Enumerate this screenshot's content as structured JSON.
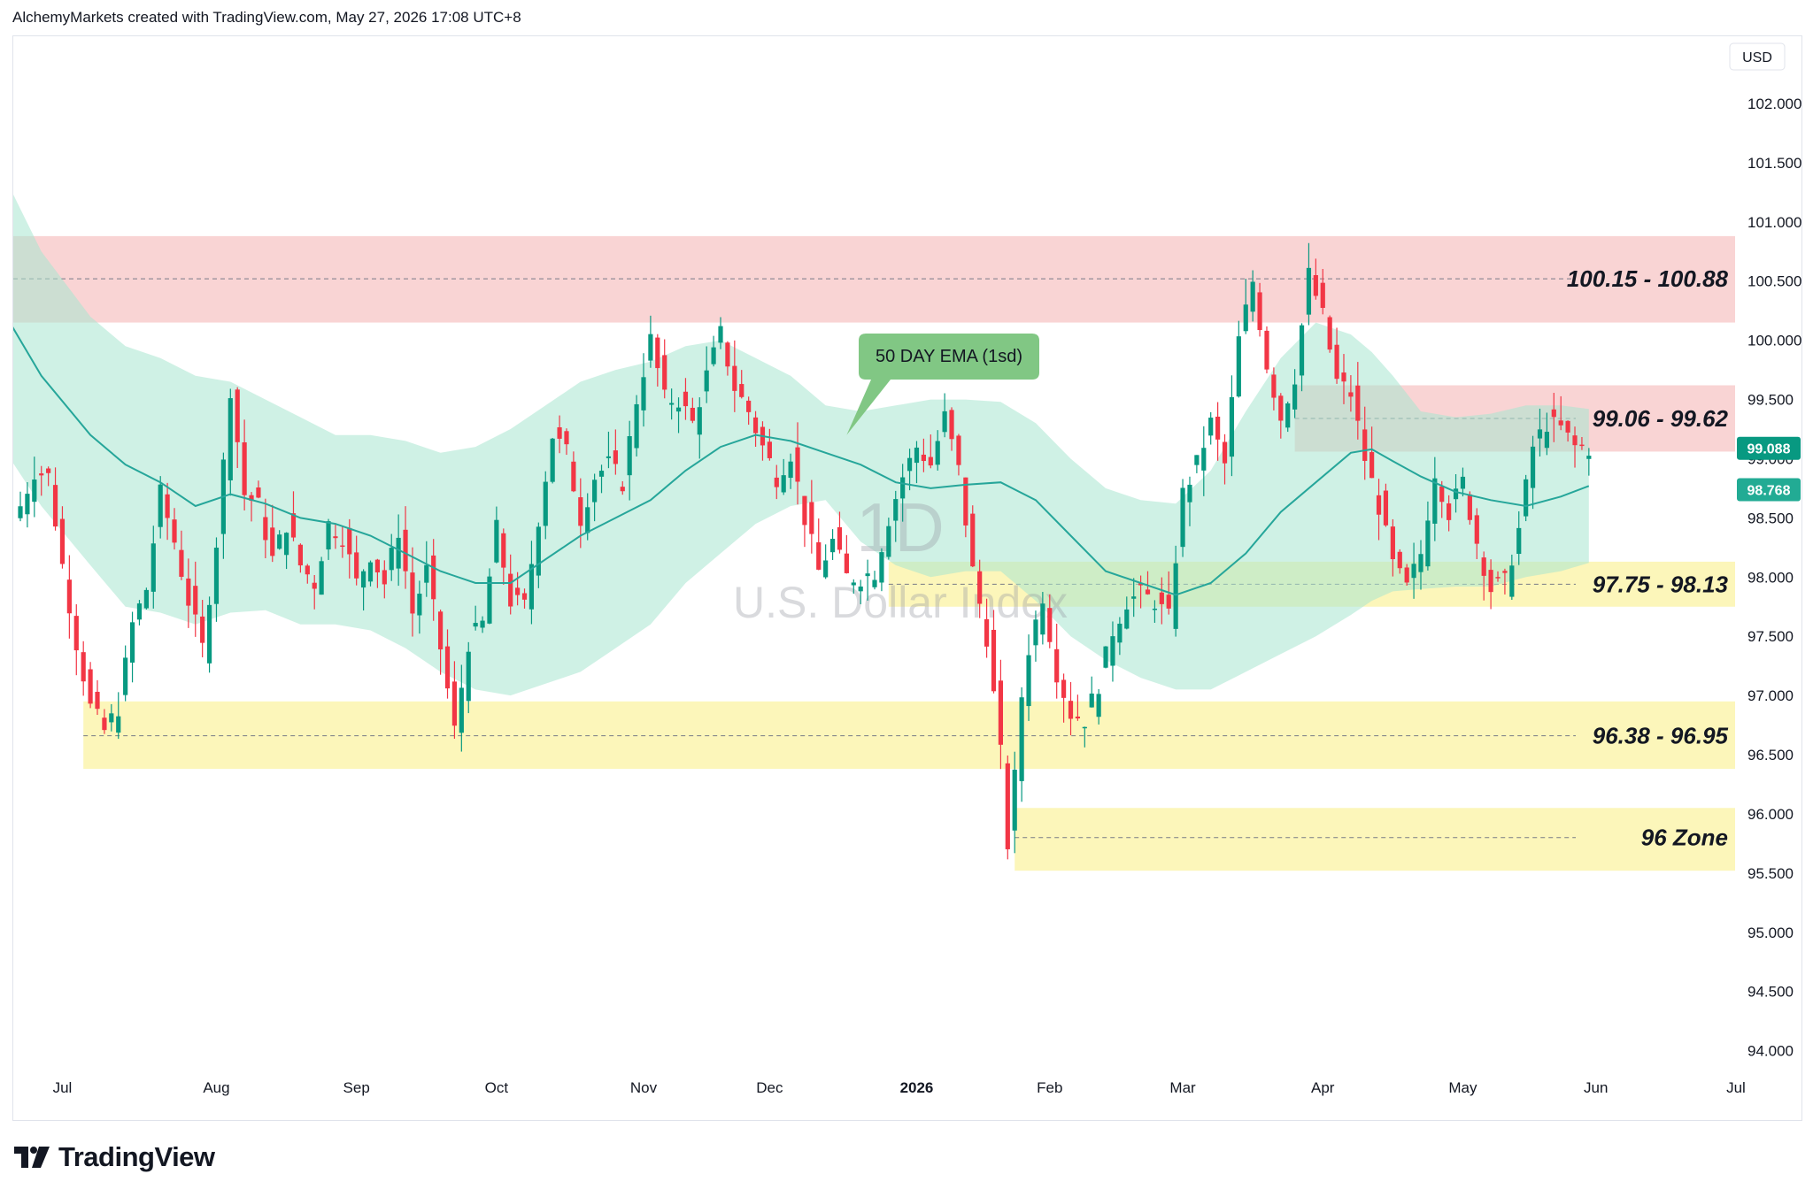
{
  "header": {
    "attribution": "AlchemyMarkets created with TradingView.com, May 27, 2026 17:08 UTC+8"
  },
  "footer": {
    "brand": "TradingView"
  },
  "chart_data": {
    "type": "candlestick",
    "symbol_watermark": "U.S. Dollar Index",
    "interval_watermark": "1D",
    "currency": "USD",
    "ylim": [
      93.8,
      102.8
    ],
    "y_ticks": [
      "94.000",
      "94.500",
      "95.000",
      "95.500",
      "96.000",
      "96.500",
      "97.000",
      "97.500",
      "98.000",
      "98.500",
      "99.000",
      "99.500",
      "100.000",
      "100.500",
      "101.000",
      "101.500",
      "102.000"
    ],
    "x_ticks": [
      {
        "label": "Jul",
        "bar": 6
      },
      {
        "label": "Aug",
        "bar": 28
      },
      {
        "label": "Sep",
        "bar": 48
      },
      {
        "label": "Oct",
        "bar": 68
      },
      {
        "label": "Nov",
        "bar": 89
      },
      {
        "label": "Dec",
        "bar": 107
      },
      {
        "label": "2026",
        "bar": 128,
        "bold": true
      },
      {
        "label": "Feb",
        "bar": 147
      },
      {
        "label": "Mar",
        "bar": 166
      },
      {
        "label": "Apr",
        "bar": 186
      },
      {
        "label": "May",
        "bar": 206
      },
      {
        "label": "Jun",
        "bar": 225
      },
      {
        "label": "Jul",
        "bar": 245
      }
    ],
    "price_labels": [
      {
        "value": "99.088",
        "price": 99.088,
        "color": "#089981"
      },
      {
        "value": "98.768",
        "price": 98.768,
        "color": "#22ab94"
      }
    ],
    "zones": [
      {
        "label": "100.15 - 100.88",
        "low": 100.15,
        "high": 100.88,
        "mid": 100.52,
        "x_start_bar": -2,
        "color": "#f7c5c5"
      },
      {
        "label": "99.06 - 99.62",
        "low": 99.06,
        "high": 99.62,
        "mid": 99.34,
        "x_start_bar": 182,
        "color": "#f7c5c5"
      },
      {
        "label": "97.75 - 98.13",
        "low": 97.75,
        "high": 98.13,
        "mid": 97.94,
        "x_start_bar": 124,
        "color": "#fbf3a3"
      },
      {
        "label": "96.38 - 96.95",
        "low": 96.38,
        "high": 96.95,
        "mid": 96.66,
        "x_start_bar": 9,
        "color": "#fbf3a3"
      },
      {
        "label": "96 Zone",
        "low": 95.52,
        "high": 96.05,
        "mid": 95.8,
        "x_start_bar": 142,
        "color": "#fbf3a3"
      }
    ],
    "annotation": {
      "text": "50 DAY EMA (1sd)",
      "bar": 118,
      "price": 99.2
    },
    "ema": {
      "name": "50 DAY EMA (1sd)",
      "points": [
        [
          -2,
          100.2
        ],
        [
          3,
          99.7
        ],
        [
          10,
          99.2
        ],
        [
          15,
          98.95
        ],
        [
          20,
          98.8
        ],
        [
          25,
          98.6
        ],
        [
          30,
          98.7
        ],
        [
          35,
          98.62
        ],
        [
          40,
          98.5
        ],
        [
          45,
          98.45
        ],
        [
          50,
          98.35
        ],
        [
          55,
          98.2
        ],
        [
          60,
          98.05
        ],
        [
          65,
          97.95
        ],
        [
          70,
          97.95
        ],
        [
          75,
          98.15
        ],
        [
          80,
          98.35
        ],
        [
          85,
          98.5
        ],
        [
          90,
          98.65
        ],
        [
          95,
          98.9
        ],
        [
          100,
          99.1
        ],
        [
          105,
          99.2
        ],
        [
          110,
          99.15
        ],
        [
          115,
          99.05
        ],
        [
          120,
          98.95
        ],
        [
          125,
          98.8
        ],
        [
          130,
          98.75
        ],
        [
          135,
          98.78
        ],
        [
          140,
          98.8
        ],
        [
          145,
          98.65
        ],
        [
          150,
          98.35
        ],
        [
          155,
          98.05
        ],
        [
          160,
          97.95
        ],
        [
          165,
          97.85
        ],
        [
          170,
          97.95
        ],
        [
          175,
          98.2
        ],
        [
          180,
          98.55
        ],
        [
          185,
          98.8
        ],
        [
          190,
          99.05
        ],
        [
          193,
          99.08
        ],
        [
          196,
          98.98
        ],
        [
          200,
          98.85
        ],
        [
          205,
          98.72
        ],
        [
          210,
          98.65
        ],
        [
          215,
          98.6
        ],
        [
          220,
          98.68
        ],
        [
          224,
          98.77
        ]
      ],
      "band_upper": [
        [
          -2,
          101.35
        ],
        [
          3,
          100.75
        ],
        [
          10,
          100.2
        ],
        [
          15,
          99.95
        ],
        [
          20,
          99.85
        ],
        [
          25,
          99.7
        ],
        [
          30,
          99.65
        ],
        [
          35,
          99.5
        ],
        [
          40,
          99.35
        ],
        [
          45,
          99.2
        ],
        [
          50,
          99.2
        ],
        [
          55,
          99.15
        ],
        [
          60,
          99.05
        ],
        [
          65,
          99.1
        ],
        [
          70,
          99.25
        ],
        [
          75,
          99.45
        ],
        [
          80,
          99.65
        ],
        [
          85,
          99.75
        ],
        [
          90,
          99.82
        ],
        [
          95,
          99.95
        ],
        [
          100,
          100.0
        ],
        [
          105,
          99.85
        ],
        [
          110,
          99.7
        ],
        [
          115,
          99.45
        ],
        [
          120,
          99.4
        ],
        [
          125,
          99.45
        ],
        [
          130,
          99.5
        ],
        [
          135,
          99.5
        ],
        [
          140,
          99.48
        ],
        [
          145,
          99.3
        ],
        [
          150,
          99.0
        ],
        [
          155,
          98.75
        ],
        [
          160,
          98.65
        ],
        [
          165,
          98.62
        ],
        [
          170,
          98.9
        ],
        [
          175,
          99.4
        ],
        [
          180,
          99.85
        ],
        [
          185,
          100.15
        ],
        [
          190,
          100.05
        ],
        [
          193,
          99.9
        ],
        [
          196,
          99.7
        ],
        [
          200,
          99.4
        ],
        [
          205,
          99.35
        ],
        [
          210,
          99.38
        ],
        [
          215,
          99.45
        ],
        [
          220,
          99.45
        ],
        [
          224,
          99.42
        ]
      ],
      "band_lower": [
        [
          -2,
          99.05
        ],
        [
          3,
          98.6
        ],
        [
          10,
          98.1
        ],
        [
          15,
          97.75
        ],
        [
          20,
          97.7
        ],
        [
          25,
          97.6
        ],
        [
          30,
          97.7
        ],
        [
          35,
          97.72
        ],
        [
          40,
          97.6
        ],
        [
          45,
          97.6
        ],
        [
          50,
          97.55
        ],
        [
          55,
          97.4
        ],
        [
          60,
          97.2
        ],
        [
          65,
          97.05
        ],
        [
          70,
          97.0
        ],
        [
          75,
          97.1
        ],
        [
          80,
          97.2
        ],
        [
          85,
          97.4
        ],
        [
          90,
          97.6
        ],
        [
          95,
          97.95
        ],
        [
          100,
          98.2
        ],
        [
          105,
          98.45
        ],
        [
          110,
          98.6
        ],
        [
          115,
          98.65
        ],
        [
          120,
          98.3
        ],
        [
          125,
          98.1
        ],
        [
          130,
          98.0
        ],
        [
          135,
          98.05
        ],
        [
          140,
          98.05
        ],
        [
          145,
          97.8
        ],
        [
          150,
          97.5
        ],
        [
          155,
          97.3
        ],
        [
          160,
          97.15
        ],
        [
          165,
          97.05
        ],
        [
          170,
          97.05
        ],
        [
          175,
          97.2
        ],
        [
          180,
          97.35
        ],
        [
          185,
          97.5
        ],
        [
          190,
          97.68
        ],
        [
          193,
          97.8
        ],
        [
          196,
          97.88
        ],
        [
          200,
          97.9
        ],
        [
          205,
          97.92
        ],
        [
          210,
          97.92
        ],
        [
          215,
          98.0
        ],
        [
          220,
          98.05
        ],
        [
          224,
          98.12
        ]
      ]
    },
    "close_path": [
      [
        0,
        98.6
      ],
      [
        2,
        98.9
      ],
      [
        4,
        98.85
      ],
      [
        6,
        98.1
      ],
      [
        8,
        97.45
      ],
      [
        10,
        96.9
      ],
      [
        12,
        96.7
      ],
      [
        14,
        96.9
      ],
      [
        16,
        97.6
      ],
      [
        18,
        97.9
      ],
      [
        20,
        98.7
      ],
      [
        22,
        98.3
      ],
      [
        24,
        97.8
      ],
      [
        26,
        97.4
      ],
      [
        28,
        98.3
      ],
      [
        30,
        99.6
      ],
      [
        32,
        98.7
      ],
      [
        34,
        98.6
      ],
      [
        36,
        98.15
      ],
      [
        38,
        98.45
      ],
      [
        40,
        98.1
      ],
      [
        42,
        97.95
      ],
      [
        44,
        98.45
      ],
      [
        46,
        98.35
      ],
      [
        48,
        97.95
      ],
      [
        50,
        98.2
      ],
      [
        52,
        97.95
      ],
      [
        54,
        98.4
      ],
      [
        56,
        97.7
      ],
      [
        58,
        98.05
      ],
      [
        60,
        97.4
      ],
      [
        62,
        96.7
      ],
      [
        64,
        97.45
      ],
      [
        66,
        97.6
      ],
      [
        68,
        98.4
      ],
      [
        70,
        97.8
      ],
      [
        72,
        97.75
      ],
      [
        74,
        98.5
      ],
      [
        76,
        99.2
      ],
      [
        78,
        99.05
      ],
      [
        80,
        98.5
      ],
      [
        82,
        98.85
      ],
      [
        84,
        98.95
      ],
      [
        86,
        98.8
      ],
      [
        88,
        99.5
      ],
      [
        90,
        100.0
      ],
      [
        92,
        99.5
      ],
      [
        94,
        99.5
      ],
      [
        96,
        99.3
      ],
      [
        98,
        99.7
      ],
      [
        100,
        100.05
      ],
      [
        102,
        99.6
      ],
      [
        104,
        99.4
      ],
      [
        106,
        99.1
      ],
      [
        108,
        98.85
      ],
      [
        110,
        99.05
      ],
      [
        112,
        98.5
      ],
      [
        114,
        98.05
      ],
      [
        116,
        98.3
      ],
      [
        118,
        98.0
      ],
      [
        120,
        98.0
      ],
      [
        122,
        98.05
      ],
      [
        124,
        98.5
      ],
      [
        126,
        98.85
      ],
      [
        128,
        99.1
      ],
      [
        130,
        98.95
      ],
      [
        132,
        99.35
      ],
      [
        134,
        98.9
      ],
      [
        136,
        98.05
      ],
      [
        138,
        97.5
      ],
      [
        140,
        96.5
      ],
      [
        141,
        95.75
      ],
      [
        142,
        96.3
      ],
      [
        143,
        97.0
      ],
      [
        144,
        97.4
      ],
      [
        146,
        97.85
      ],
      [
        148,
        97.2
      ],
      [
        150,
        96.85
      ],
      [
        152,
        96.8
      ],
      [
        154,
        97.1
      ],
      [
        156,
        97.55
      ],
      [
        158,
        97.8
      ],
      [
        160,
        97.85
      ],
      [
        162,
        97.8
      ],
      [
        164,
        97.65
      ],
      [
        166,
        98.7
      ],
      [
        168,
        98.95
      ],
      [
        170,
        99.3
      ],
      [
        172,
        98.95
      ],
      [
        174,
        100.0
      ],
      [
        176,
        100.5
      ],
      [
        178,
        99.8
      ],
      [
        180,
        99.35
      ],
      [
        182,
        99.7
      ],
      [
        184,
        100.55
      ],
      [
        186,
        100.2
      ],
      [
        188,
        99.65
      ],
      [
        190,
        99.55
      ],
      [
        192,
        99.0
      ],
      [
        194,
        98.6
      ],
      [
        196,
        98.1
      ],
      [
        198,
        97.9
      ],
      [
        200,
        98.2
      ],
      [
        202,
        98.9
      ],
      [
        204,
        98.55
      ],
      [
        206,
        98.8
      ],
      [
        208,
        98.3
      ],
      [
        210,
        97.9
      ],
      [
        212,
        97.95
      ],
      [
        214,
        98.4
      ],
      [
        216,
        99.1
      ],
      [
        218,
        99.3
      ],
      [
        220,
        99.25
      ],
      [
        222,
        99.1
      ],
      [
        224,
        99.09
      ]
    ]
  }
}
